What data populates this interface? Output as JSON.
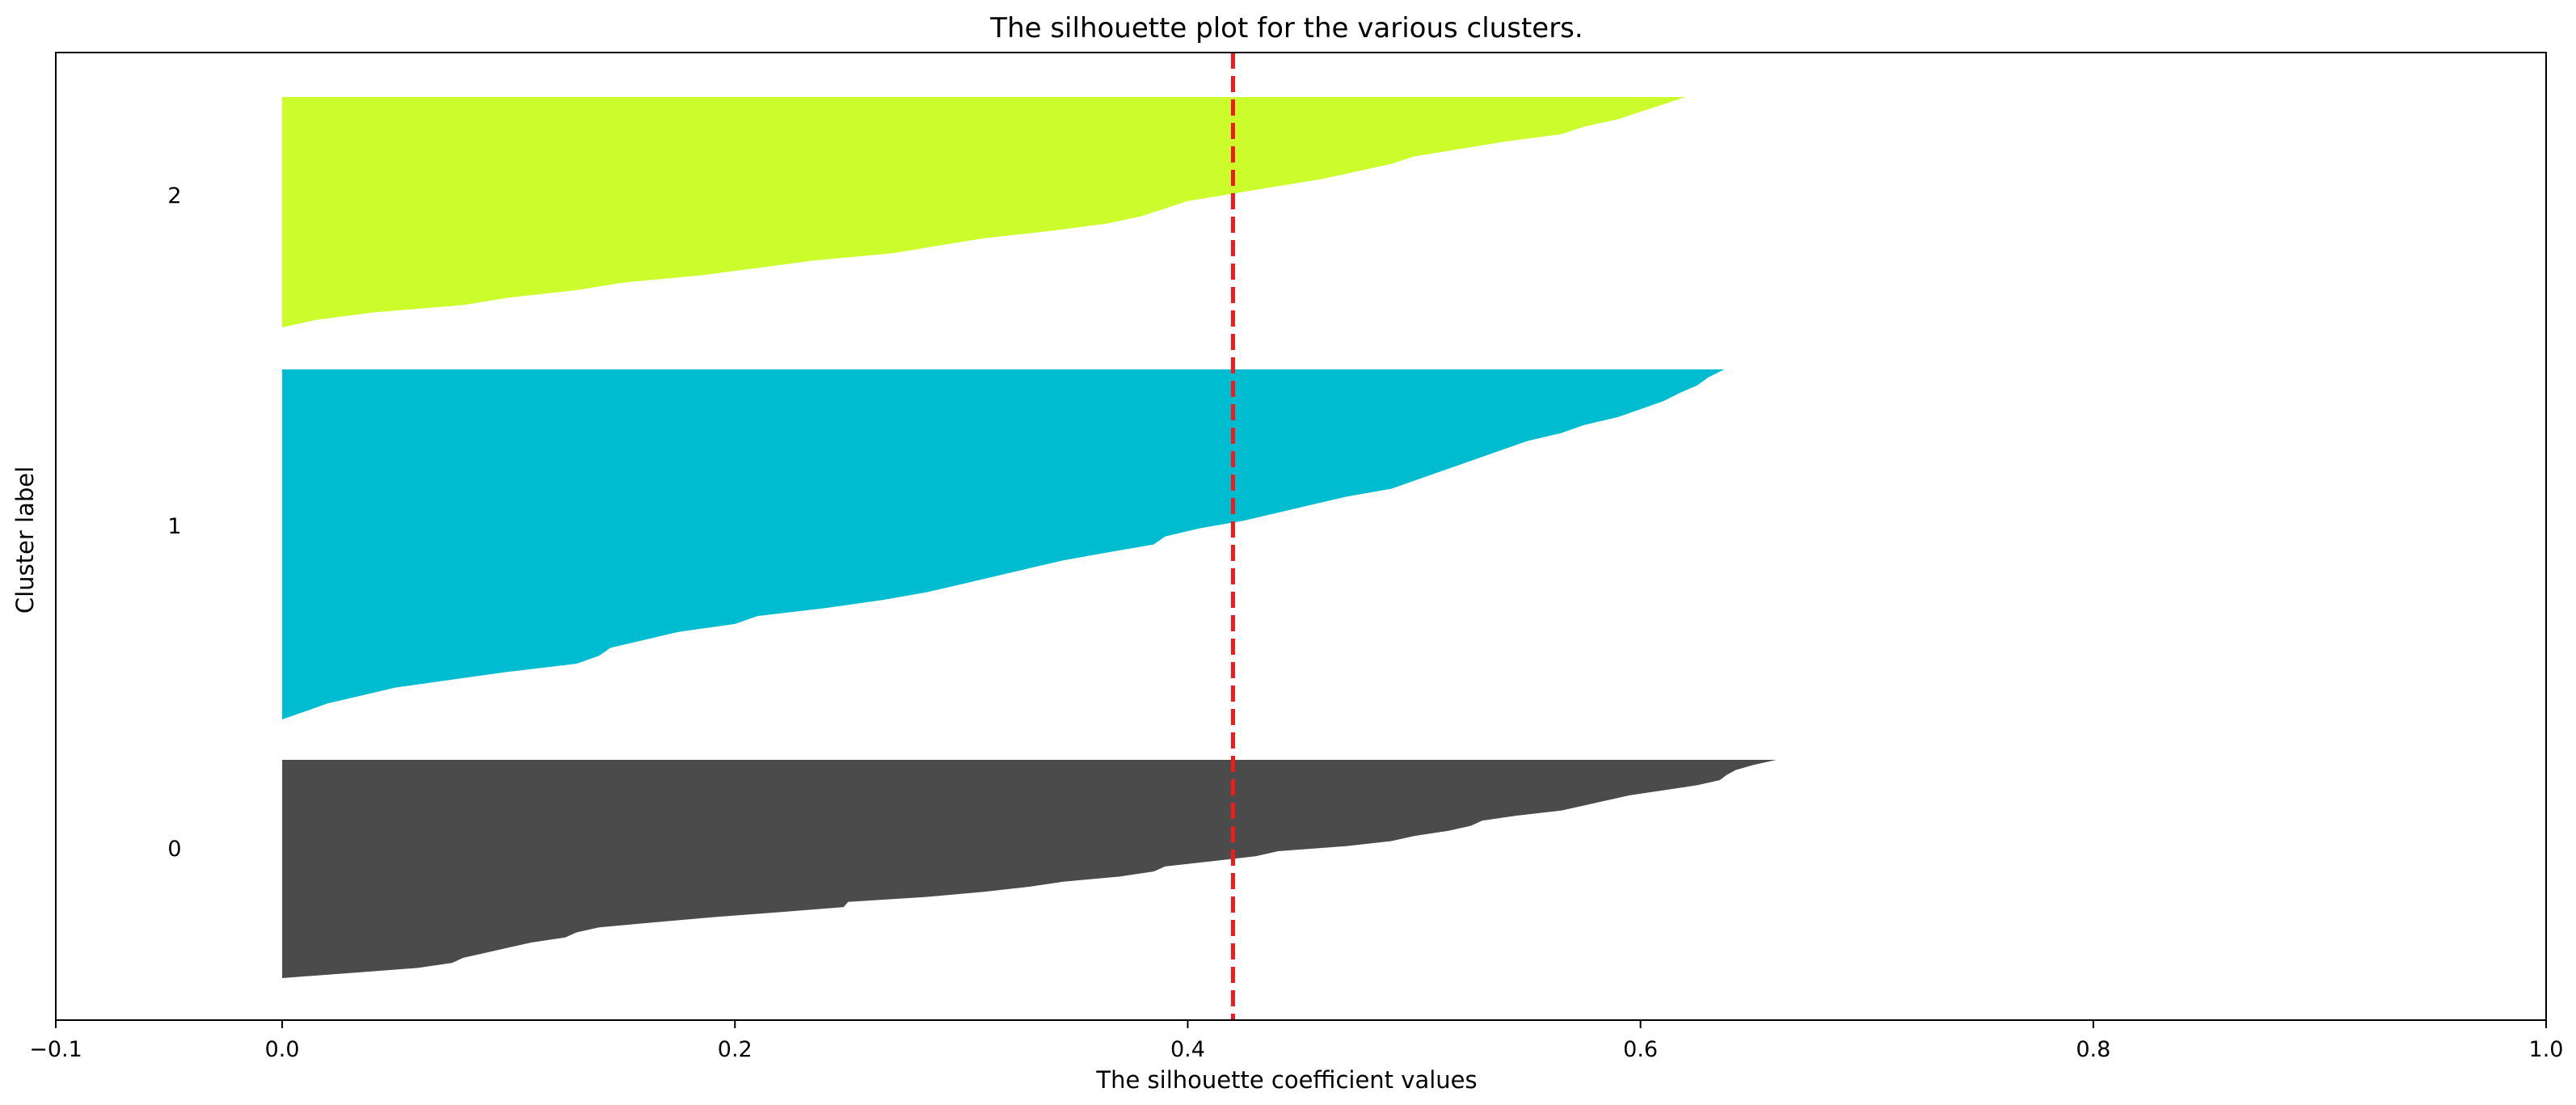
{
  "chart_data": {
    "type": "area",
    "title": "The silhouette plot for the various clusters.",
    "xlabel": "The silhouette coefficient values",
    "ylabel": "Cluster label",
    "xlim": [
      -0.1,
      1.0
    ],
    "xticks": [
      -0.1,
      0.0,
      0.2,
      0.4,
      0.6,
      0.8,
      1.0
    ],
    "xtick_labels": [
      "−0.1",
      "0.0",
      "0.2",
      "0.4",
      "0.6",
      "0.8",
      "1.0"
    ],
    "grid": false,
    "average_silhouette_score": 0.42,
    "average_line_color": "#ee1c1c",
    "clusters": [
      {
        "label": "0",
        "color": "#4b4b4b",
        "silhouette_values": [
          0.0,
          0.03,
          0.06,
          0.075,
          0.08,
          0.09,
          0.1,
          0.11,
          0.125,
          0.13,
          0.14,
          0.165,
          0.19,
          0.22,
          0.248,
          0.25,
          0.285,
          0.31,
          0.33,
          0.345,
          0.37,
          0.385,
          0.39,
          0.41,
          0.43,
          0.44,
          0.47,
          0.49,
          0.5,
          0.515,
          0.525,
          0.53,
          0.545,
          0.565,
          0.575,
          0.585,
          0.595,
          0.61,
          0.625,
          0.635,
          0.638,
          0.642,
          0.65,
          0.66
        ]
      },
      {
        "label": "1",
        "color": "#00bcd0",
        "silhouette_values": [
          0.0,
          0.01,
          0.02,
          0.035,
          0.05,
          0.075,
          0.1,
          0.13,
          0.14,
          0.145,
          0.16,
          0.175,
          0.2,
          0.21,
          0.24,
          0.265,
          0.285,
          0.3,
          0.315,
          0.33,
          0.345,
          0.365,
          0.385,
          0.39,
          0.405,
          0.425,
          0.44,
          0.455,
          0.47,
          0.49,
          0.5,
          0.51,
          0.52,
          0.53,
          0.54,
          0.55,
          0.565,
          0.575,
          0.59,
          0.6,
          0.61,
          0.617,
          0.625,
          0.63,
          0.637
        ]
      },
      {
        "label": "2",
        "color": "#cdfc2c",
        "silhouette_values": [
          0.0,
          0.015,
          0.04,
          0.08,
          0.1,
          0.13,
          0.15,
          0.185,
          0.21,
          0.235,
          0.27,
          0.29,
          0.31,
          0.34,
          0.365,
          0.38,
          0.39,
          0.4,
          0.42,
          0.44,
          0.46,
          0.475,
          0.49,
          0.5,
          0.52,
          0.54,
          0.565,
          0.575,
          0.59,
          0.6,
          0.61,
          0.62
        ]
      }
    ]
  }
}
